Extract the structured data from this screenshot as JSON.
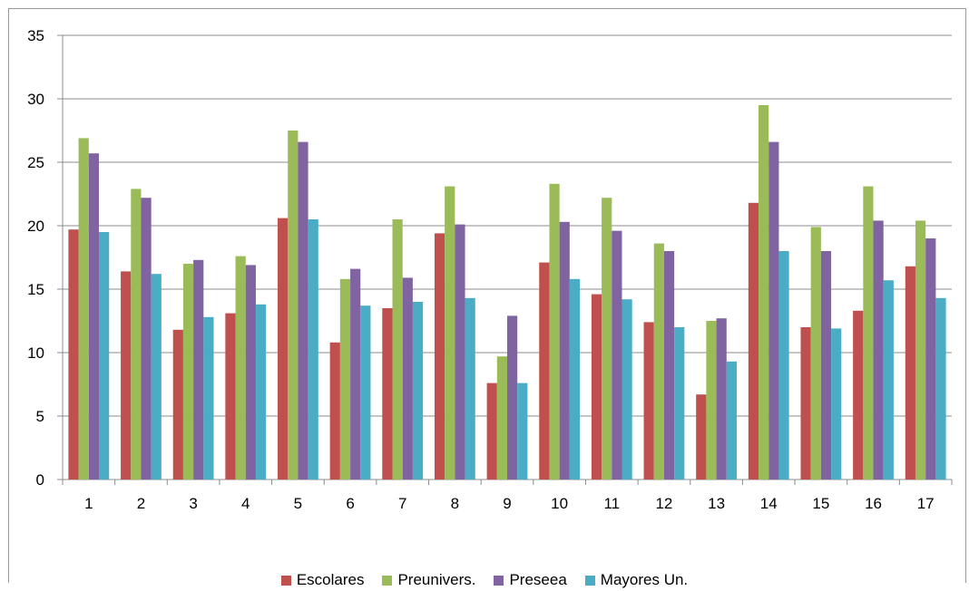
{
  "chart_data": {
    "type": "bar",
    "categories": [
      "1",
      "2",
      "3",
      "4",
      "5",
      "6",
      "7",
      "8",
      "9",
      "10",
      "11",
      "12",
      "13",
      "14",
      "15",
      "16",
      "17"
    ],
    "series": [
      {
        "name": "Escolares",
        "color": "#c0504d",
        "values": [
          19.7,
          16.4,
          11.8,
          13.1,
          20.6,
          10.8,
          13.5,
          19.4,
          7.6,
          17.1,
          14.6,
          12.4,
          6.7,
          21.8,
          12.0,
          13.3,
          16.8
        ]
      },
      {
        "name": "Preunivers.",
        "color": "#9bbb59",
        "values": [
          26.9,
          22.9,
          17.0,
          17.6,
          27.5,
          15.8,
          20.5,
          23.1,
          9.7,
          23.3,
          22.2,
          18.6,
          12.5,
          29.5,
          19.9,
          23.1,
          20.4
        ]
      },
      {
        "name": "Preseea",
        "color": "#8064a2",
        "values": [
          25.7,
          22.2,
          17.3,
          16.9,
          26.6,
          16.6,
          15.9,
          20.1,
          12.9,
          20.3,
          19.6,
          18.0,
          12.7,
          26.6,
          18.0,
          20.4,
          19.0
        ]
      },
      {
        "name": "Mayores Un.",
        "color": "#4bacc6",
        "values": [
          19.5,
          16.2,
          12.8,
          13.8,
          20.5,
          13.7,
          14.0,
          14.3,
          7.6,
          15.8,
          14.2,
          12.0,
          9.3,
          18.0,
          11.9,
          15.7,
          14.3
        ]
      }
    ],
    "ylim": [
      0,
      35
    ],
    "yticks": [
      "0",
      "5",
      "10",
      "15",
      "20",
      "25",
      "30",
      "35"
    ],
    "grid": true,
    "legend_position": "bottom"
  }
}
